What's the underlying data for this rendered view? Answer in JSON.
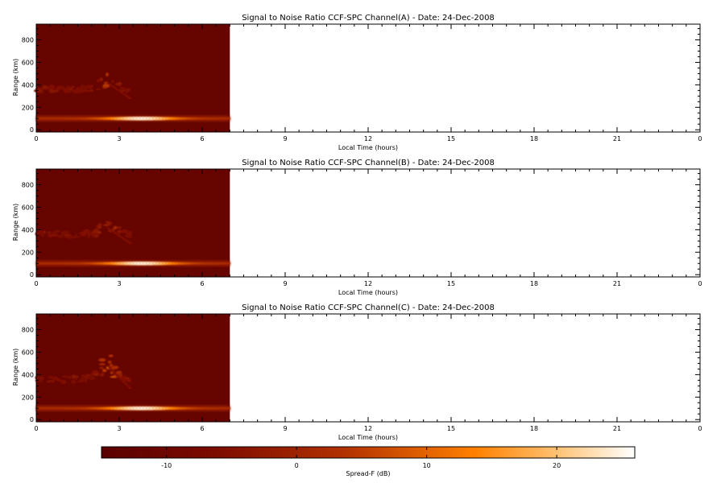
{
  "chart_data": [
    {
      "type": "heatmap",
      "title": "Signal to Noise Ratio CCF-SPC Channel(A) - Date: 24-Dec-2008",
      "xlabel": "Local Time (hours)",
      "ylabel": "Range (km)",
      "xlim": [
        0,
        24
      ],
      "ylim": [
        -20,
        940
      ],
      "x_ticks": [
        "0",
        "3",
        "6",
        "9",
        "12",
        "15",
        "18",
        "21",
        "0"
      ],
      "y_ticks": [
        "0",
        "200",
        "400",
        "600",
        "800"
      ],
      "data_extent_hours": [
        0,
        7
      ],
      "features": [
        {
          "name": "E-region layer",
          "range_km": 100,
          "x_from": 0,
          "x_to": 7,
          "peak_x": 3.8,
          "peak_db": 24
        },
        {
          "name": "Spread-F echoes",
          "range_km": [
            300,
            500
          ],
          "x_from": 0,
          "x_to": 3.4,
          "peak_x": 2.6,
          "peak_db": 4
        }
      ],
      "background_db": -12
    },
    {
      "type": "heatmap",
      "title": "Signal to Noise Ratio CCF-SPC Channel(B) - Date: 24-Dec-2008",
      "xlabel": "Local Time (hours)",
      "ylabel": "Range (km)",
      "xlim": [
        0,
        24
      ],
      "ylim": [
        -20,
        940
      ],
      "x_ticks": [
        "0",
        "3",
        "6",
        "9",
        "12",
        "15",
        "18",
        "21",
        "0"
      ],
      "y_ticks": [
        "0",
        "200",
        "400",
        "600",
        "800"
      ],
      "data_extent_hours": [
        0,
        7
      ],
      "features": [
        {
          "name": "E-region layer",
          "range_km": 100,
          "x_from": 0,
          "x_to": 7,
          "peak_x": 3.8,
          "peak_db": 24
        },
        {
          "name": "Spread-F echoes",
          "range_km": [
            300,
            500
          ],
          "x_from": 0,
          "x_to": 3.4,
          "peak_x": 2.6,
          "peak_db": 4
        }
      ],
      "background_db": -12
    },
    {
      "type": "heatmap",
      "title": "Signal to Noise Ratio CCF-SPC Channel(C) - Date: 24-Dec-2008",
      "xlabel": "Local Time (hours)",
      "ylabel": "Range (km)",
      "xlim": [
        0,
        24
      ],
      "ylim": [
        -20,
        940
      ],
      "x_ticks": [
        "0",
        "3",
        "6",
        "9",
        "12",
        "15",
        "18",
        "21",
        "0"
      ],
      "y_ticks": [
        "0",
        "200",
        "400",
        "600",
        "800"
      ],
      "data_extent_hours": [
        0,
        7
      ],
      "features": [
        {
          "name": "E-region layer",
          "range_km": 100,
          "x_from": 0,
          "x_to": 7,
          "peak_x": 3.8,
          "peak_db": 24
        },
        {
          "name": "Spread-F echoes",
          "range_km": [
            300,
            560
          ],
          "x_from": 0,
          "x_to": 3.4,
          "peak_x": 2.6,
          "peak_db": 8
        }
      ],
      "background_db": -12
    }
  ],
  "colorbar": {
    "label": "Spread-F (dB)",
    "range": [
      -15,
      26
    ],
    "ticks": [
      "-10",
      "0",
      "10",
      "20"
    ],
    "tick_values": [
      -10,
      0,
      10,
      20
    ],
    "colors": [
      "#5a0000",
      "#7a0a00",
      "#b03000",
      "#ff8000",
      "#ffc070",
      "#ffffff"
    ]
  }
}
